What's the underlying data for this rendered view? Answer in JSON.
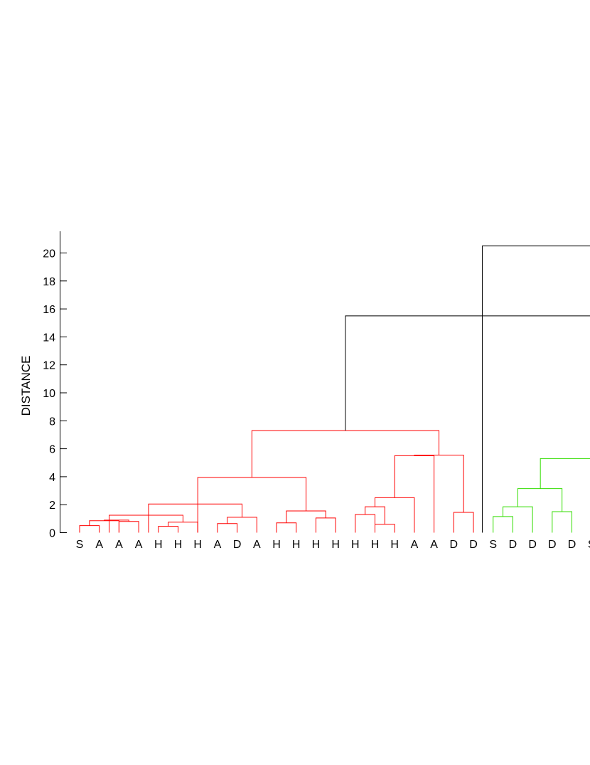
{
  "chart_data": {
    "type": "dendrogram",
    "title": "",
    "xlabel": "",
    "ylabel": "DISTANCE",
    "ylim": [
      0,
      21.5
    ],
    "y_ticks": [
      0,
      2,
      4,
      6,
      8,
      10,
      12,
      14,
      16,
      18,
      20
    ],
    "grid": false,
    "leaf_labels": [
      "S",
      "A",
      "A",
      "A",
      "H",
      "H",
      "H",
      "A",
      "D",
      "A",
      "H",
      "H",
      "H",
      "H",
      "H",
      "H",
      "H",
      "A",
      "A",
      "D",
      "D",
      "S",
      "D",
      "D",
      "D",
      "D",
      "S"
    ],
    "colors": {
      "cluster_1": "#ff0000",
      "cluster_2": "#33dd00",
      "root": "#000000"
    },
    "links": [
      {
        "l": 0,
        "r": 1,
        "h": 0.5,
        "c": "cluster_1"
      },
      {
        "l": 0.5,
        "r": 2,
        "h": 0.85,
        "c": "cluster_1"
      },
      {
        "l": 2,
        "r": 3,
        "h": 0.8,
        "c": "cluster_1"
      },
      {
        "l": 1.25,
        "r": 2.5,
        "h": 0.9,
        "c": "cluster_1"
      },
      {
        "l": 4,
        "r": 5,
        "h": 0.45,
        "c": "cluster_1"
      },
      {
        "l": 4.5,
        "r": 6,
        "h": 0.75,
        "c": "cluster_1"
      },
      {
        "l": 1.5,
        "r": 5.25,
        "h": 1.25,
        "c": "cluster_1"
      },
      {
        "l": 7,
        "r": 8,
        "h": 0.65,
        "c": "cluster_1"
      },
      {
        "l": 7.5,
        "r": 9,
        "h": 1.1,
        "c": "cluster_1"
      },
      {
        "l": 3.5,
        "r": 8.25,
        "h": 2.05,
        "c": "cluster_1"
      },
      {
        "l": 10,
        "r": 11,
        "h": 0.7,
        "c": "cluster_1"
      },
      {
        "l": 12,
        "r": 13,
        "h": 1.05,
        "c": "cluster_1"
      },
      {
        "l": 10.5,
        "r": 12.5,
        "h": 1.55,
        "c": "cluster_1"
      },
      {
        "l": 6,
        "r": 11.5,
        "h": 3.95,
        "c": "cluster_1"
      },
      {
        "l": 14,
        "r": 15,
        "h": 1.3,
        "c": "cluster_1"
      },
      {
        "l": 15,
        "r": 16,
        "h": 0.6,
        "c": "cluster_1"
      },
      {
        "l": 14.5,
        "r": 15.5,
        "h": 1.85,
        "c": "cluster_1"
      },
      {
        "l": 15,
        "r": 17,
        "h": 2.5,
        "c": "cluster_1"
      },
      {
        "l": 16,
        "r": 18,
        "h": 5.5,
        "c": "cluster_1"
      },
      {
        "l": 19,
        "r": 20,
        "h": 1.45,
        "c": "cluster_1"
      },
      {
        "l": 17,
        "r": 19.5,
        "h": 5.55,
        "c": "cluster_1"
      },
      {
        "l": 8.75,
        "r": 18.25,
        "h": 7.3,
        "c": "cluster_1"
      },
      {
        "l": 21,
        "r": 22,
        "h": 1.15,
        "c": "cluster_2"
      },
      {
        "l": 21.5,
        "r": 23,
        "h": 1.85,
        "c": "cluster_2"
      },
      {
        "l": 24,
        "r": 25,
        "h": 1.5,
        "c": "cluster_2"
      },
      {
        "l": 22.25,
        "r": 24.5,
        "h": 3.15,
        "c": "cluster_2"
      },
      {
        "l": 23.4,
        "r": 26.6,
        "h": 5.3,
        "c": "cluster_2"
      },
      {
        "l": 13.5,
        "r": 27,
        "h": 15.5,
        "c": "root"
      },
      {
        "l": 20.45,
        "r": 28,
        "h": 20.5,
        "c": "root"
      }
    ]
  }
}
